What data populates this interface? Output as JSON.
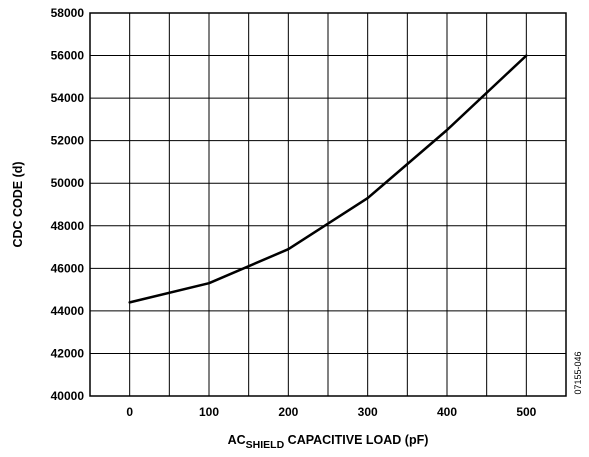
{
  "chart_data": {
    "type": "line",
    "title": "",
    "xlabel": {
      "prefix": "AC",
      "subscript": "SHIELD",
      "suffix": " CAPACITIVE LOAD (pF)"
    },
    "ylabel": "CDC CODE (d)",
    "xlim": [
      -50,
      550
    ],
    "ylim": [
      40000,
      58000
    ],
    "xticks": [
      0,
      100,
      200,
      300,
      400,
      500
    ],
    "yticks": [
      40000,
      42000,
      44000,
      46000,
      48000,
      50000,
      52000,
      54000,
      56000,
      58000
    ],
    "grid": true,
    "series": [
      {
        "x": [
          0,
          100,
          200,
          300,
          400,
          500
        ],
        "y": [
          44400,
          45300,
          46900,
          49300,
          52500,
          56000
        ]
      }
    ],
    "figure_code": "07155-046",
    "colors": {
      "line": "#000000",
      "grid": "#000000",
      "background": "#ffffff"
    }
  }
}
